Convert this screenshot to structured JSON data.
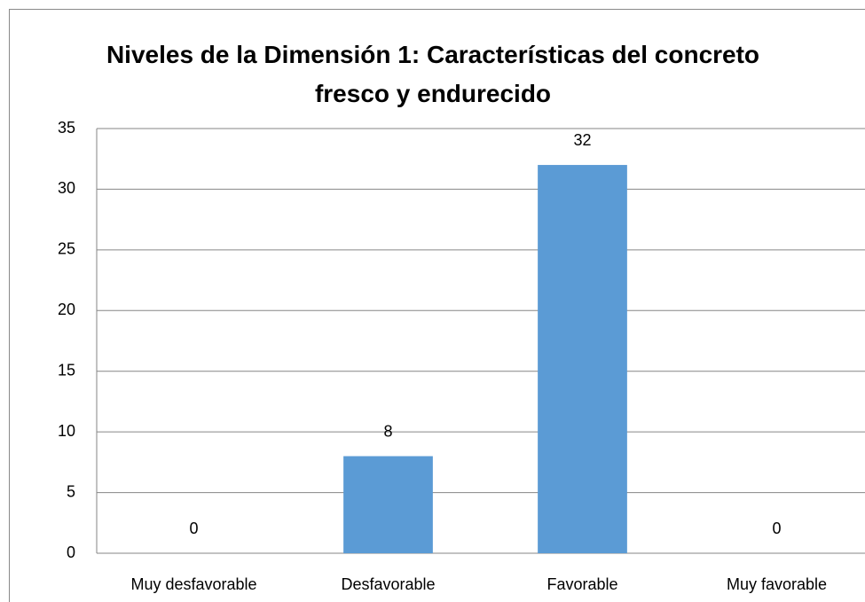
{
  "chart_data": {
    "type": "bar",
    "title": "Niveles de la Dimensión 1: Características del concreto fresco y endurecido",
    "categories": [
      "Muy desfavorable",
      "Desfavorable",
      "Favorable",
      "Muy favorable"
    ],
    "values": [
      0,
      8,
      32,
      0
    ],
    "color": "#5b9bd5",
    "ylim": [
      0,
      35
    ],
    "yticks": [
      0,
      5,
      10,
      15,
      20,
      25,
      30,
      35
    ],
    "grid": true
  }
}
